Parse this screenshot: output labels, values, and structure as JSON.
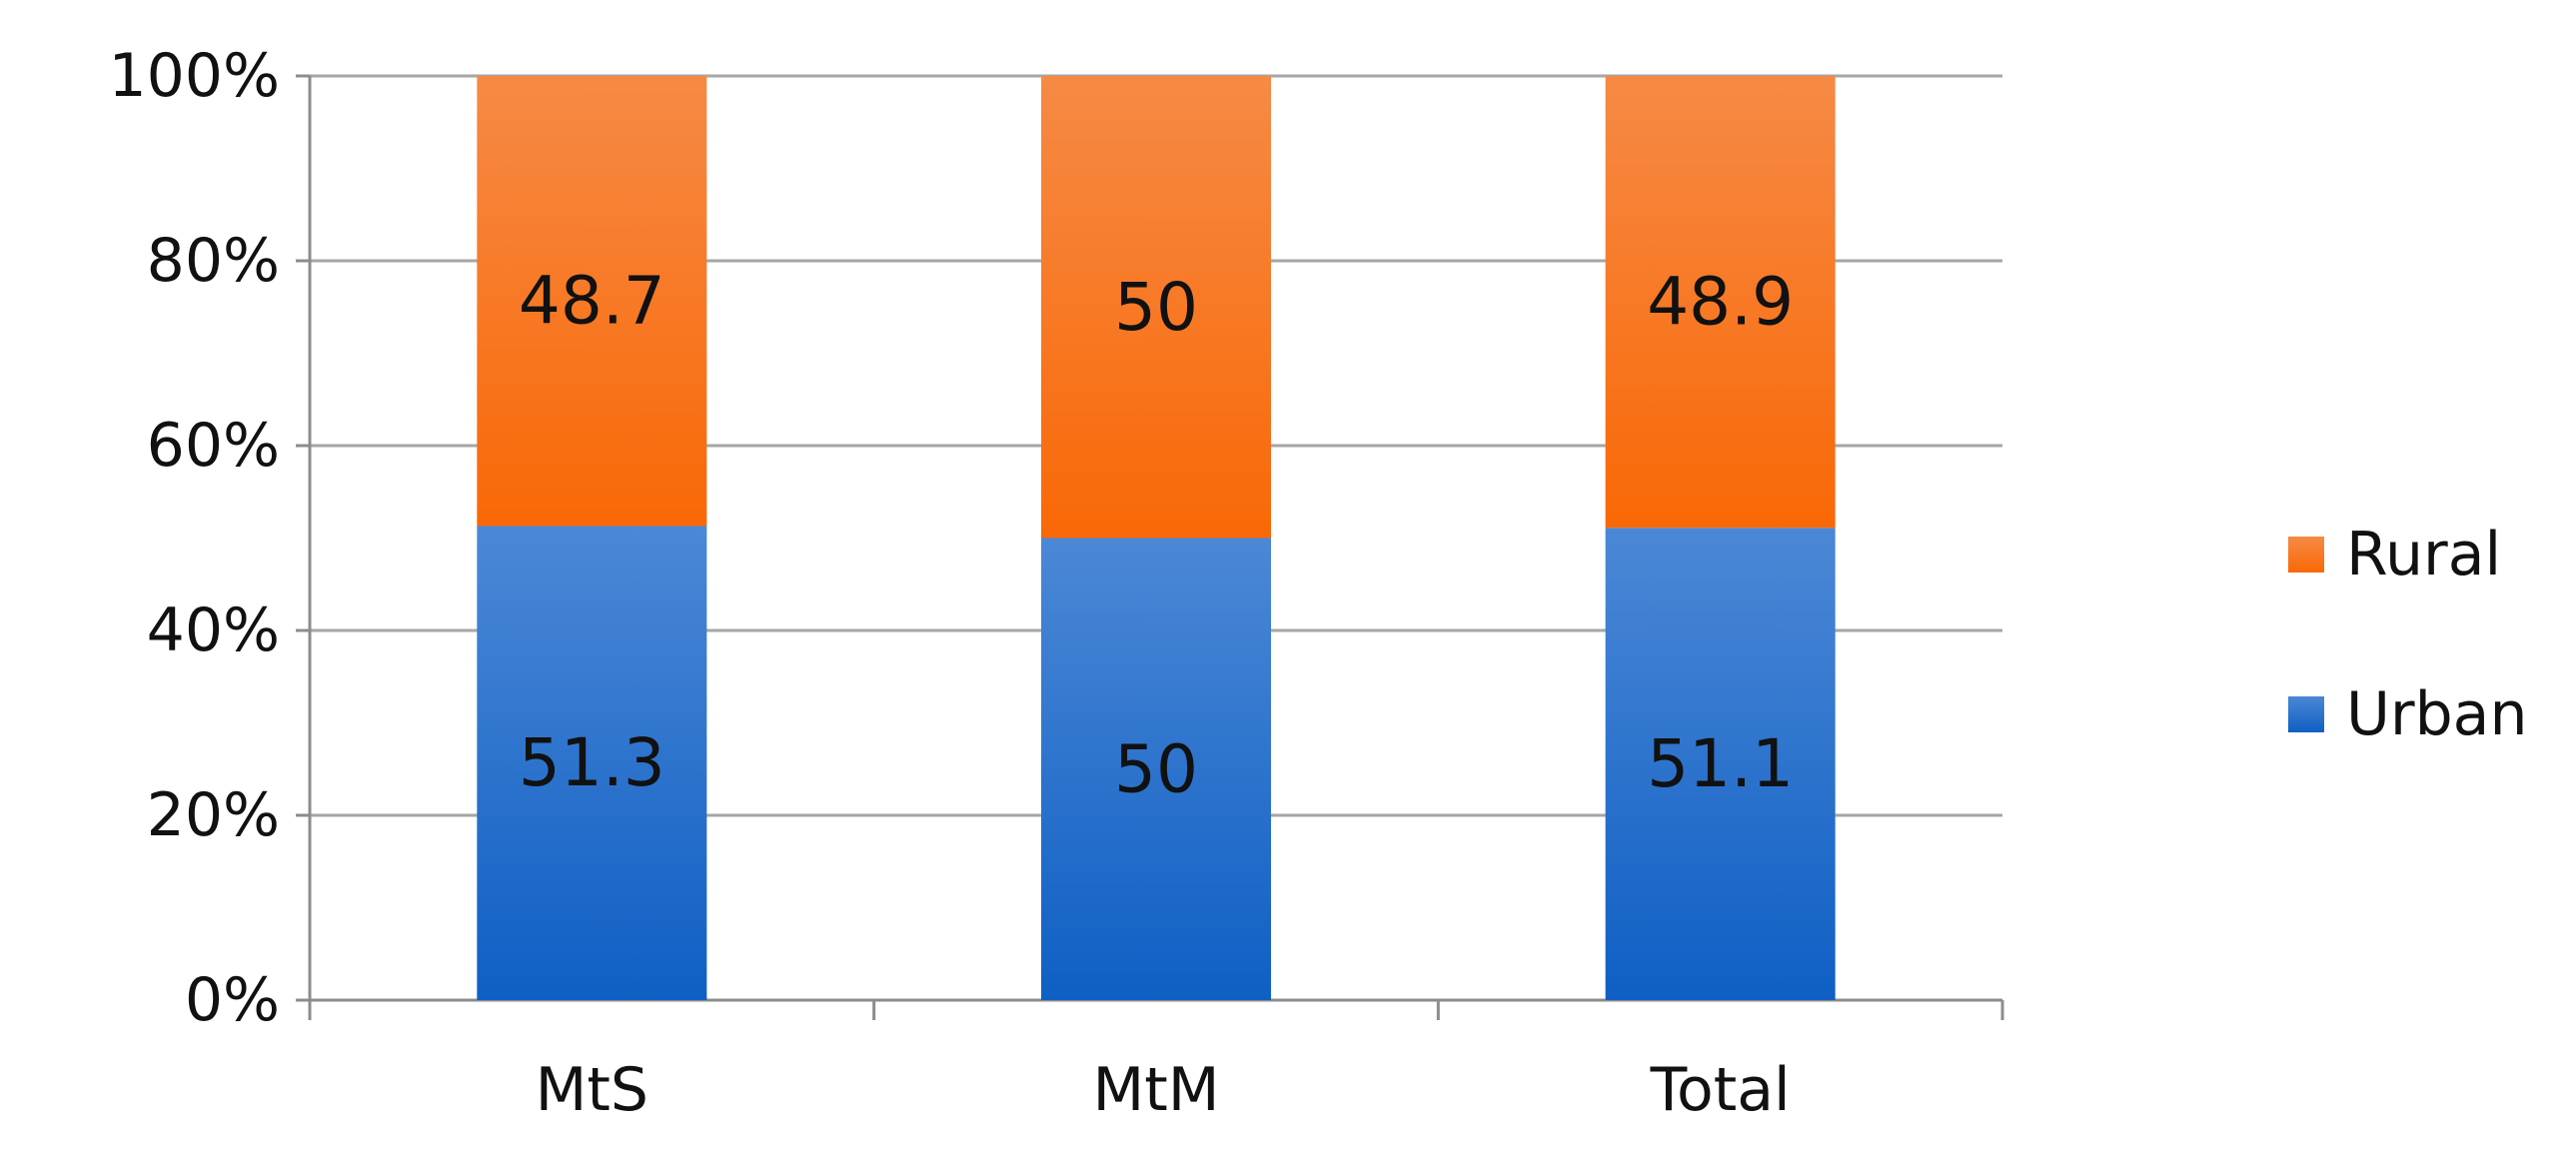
{
  "chart_data": {
    "type": "bar",
    "stacked": true,
    "categories": [
      "MtS",
      "MtM",
      "Total"
    ],
    "series": [
      {
        "name": "Urban",
        "values": [
          51.3,
          50,
          51.1
        ],
        "color": "#1f6fd0"
      },
      {
        "name": "Rural",
        "values": [
          48.7,
          50,
          48.9
        ],
        "color": "#f77b21"
      }
    ],
    "ylim": [
      0,
      100
    ],
    "yticks": [
      0,
      20,
      40,
      60,
      80,
      100
    ],
    "ytick_labels": [
      "0%",
      "20%",
      "40%",
      "60%",
      "80%",
      "100%"
    ],
    "data_labels": [
      [
        "51.3",
        "50",
        "51.1"
      ],
      [
        "48.7",
        "50",
        "48.9"
      ]
    ],
    "legend_order": [
      "Rural",
      "Urban"
    ],
    "legend_position": "right",
    "grid": true,
    "colors": {
      "urban_top": "#4b88d6",
      "urban_bottom": "#0f5fc4",
      "rural_top": "#f68a45",
      "rural_bottom": "#f96806",
      "grid": "#a6a6a6",
      "axis": "#8c8c8c"
    }
  }
}
